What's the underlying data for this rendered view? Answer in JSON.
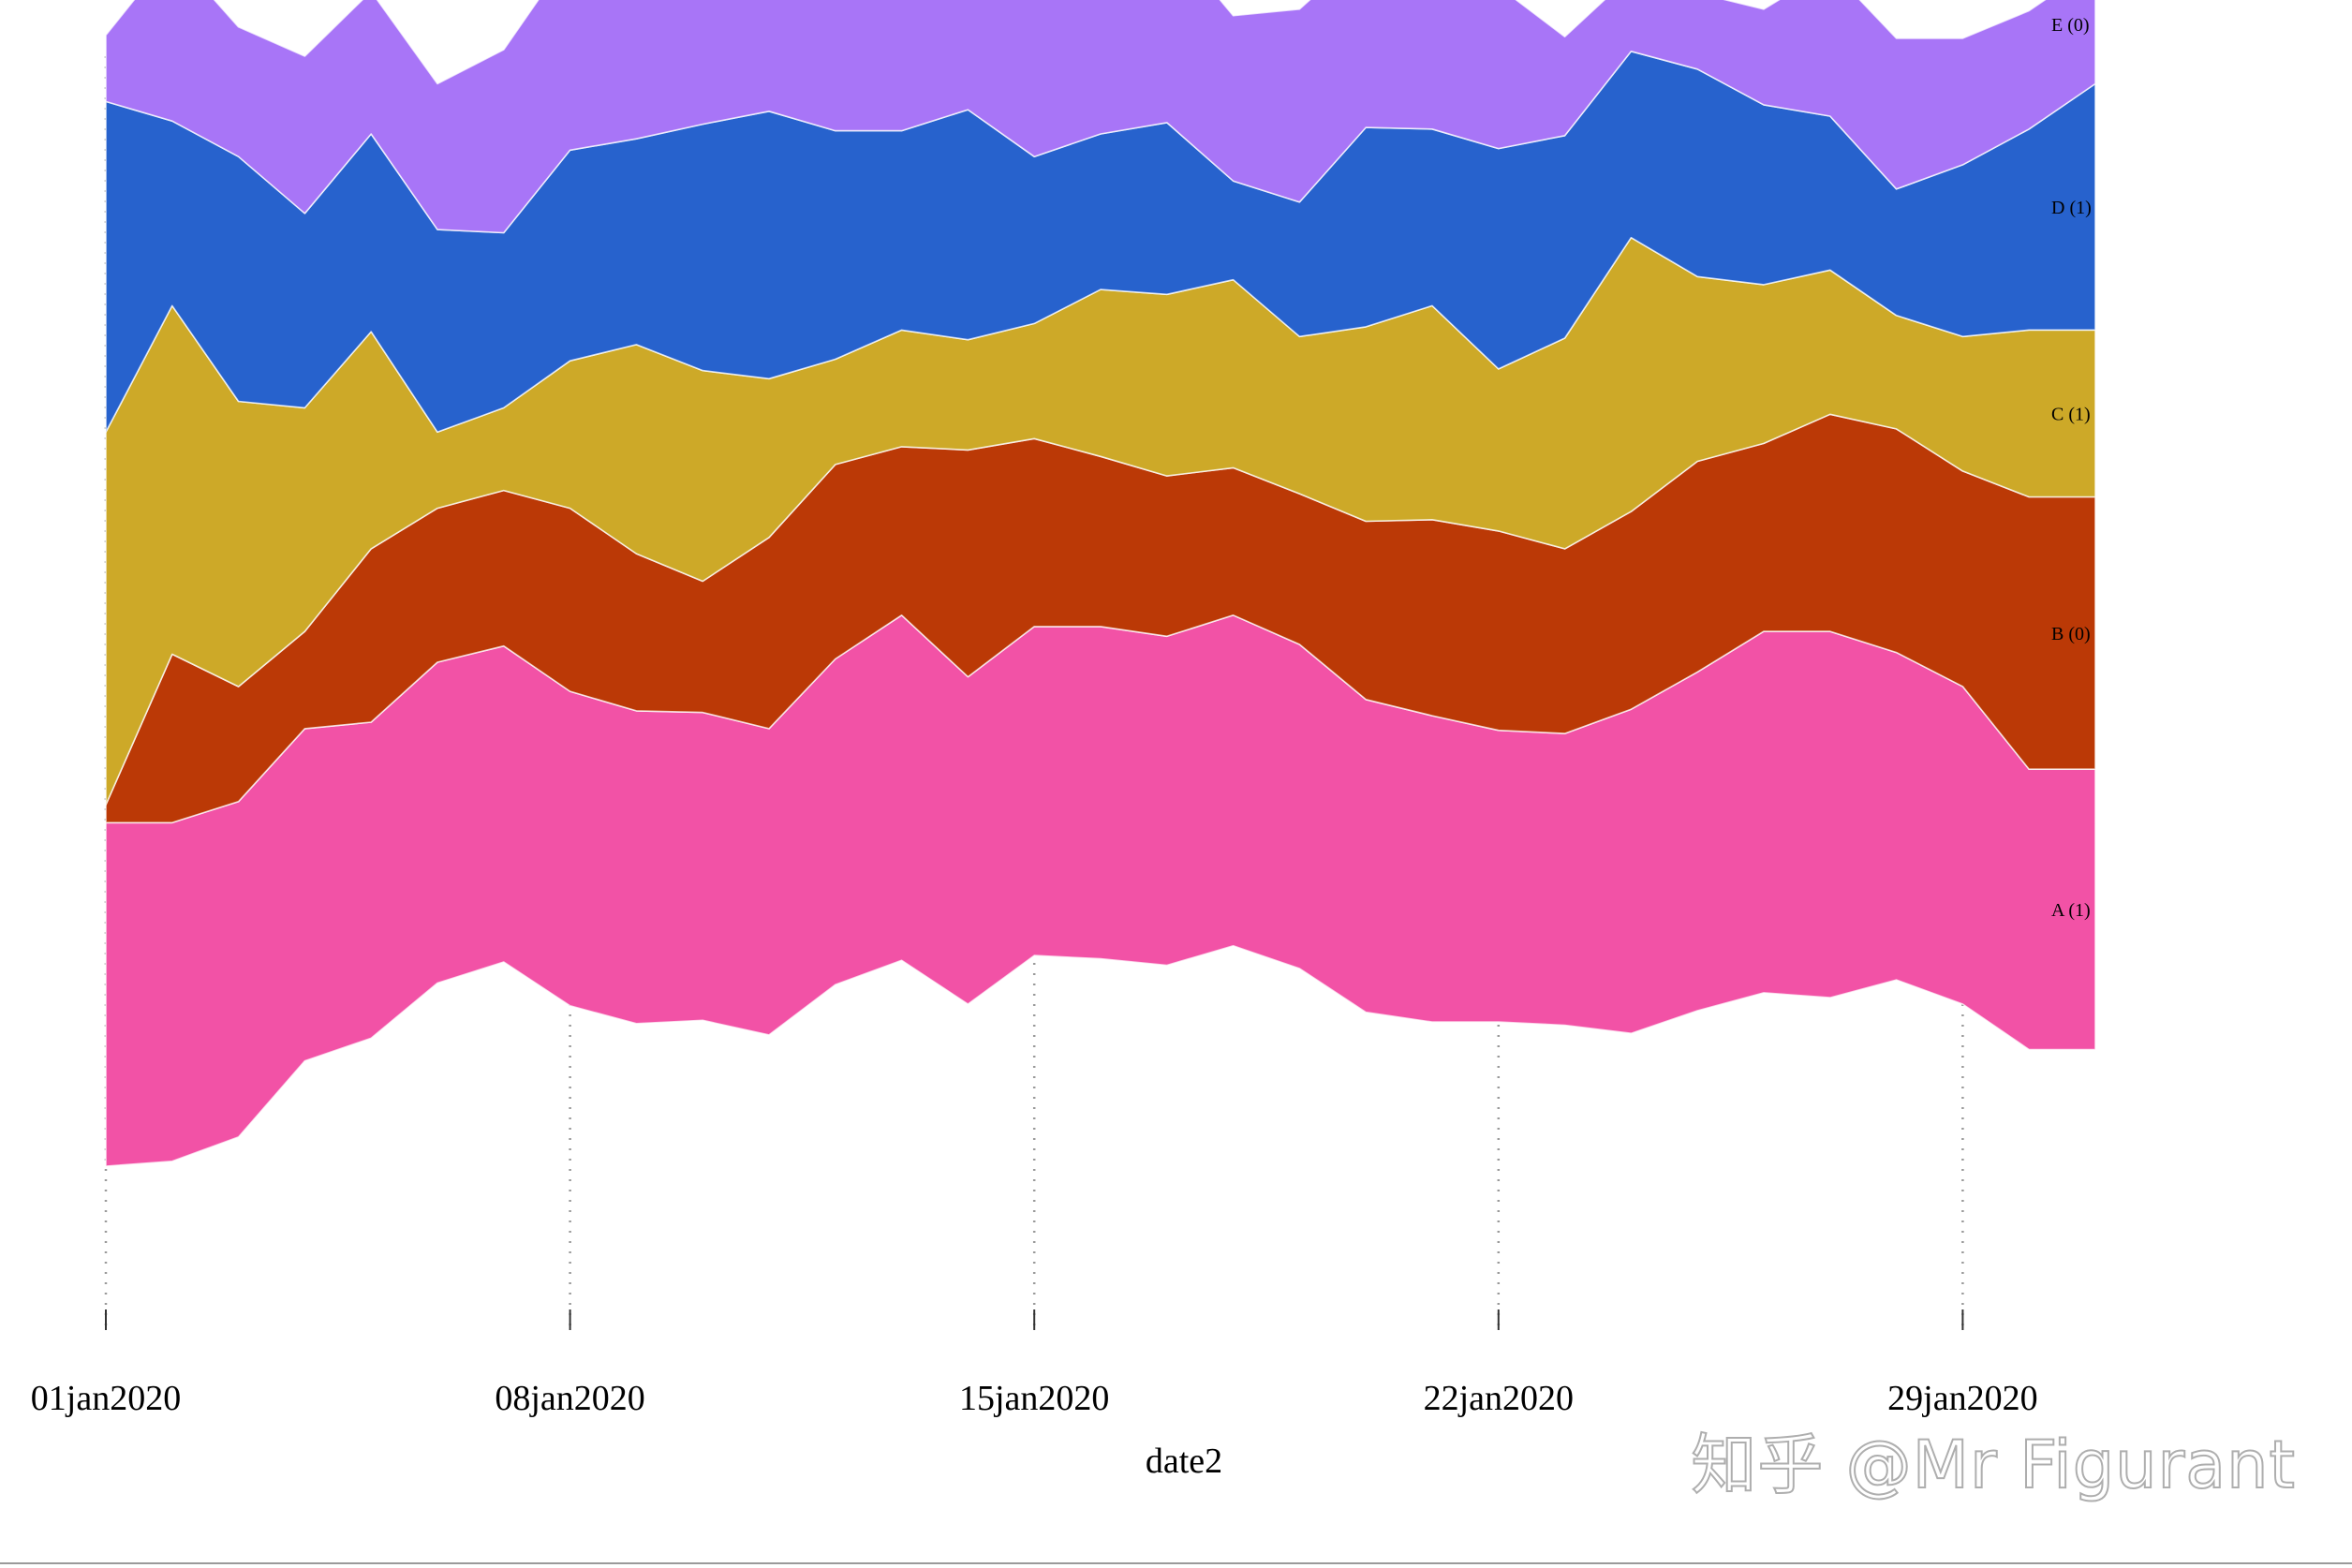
{
  "chart_data": {
    "type": "area",
    "stacked": true,
    "layout": "streamgraph",
    "title": "",
    "xlabel": "date2",
    "ylabel": "",
    "grid": "vertical-dotted",
    "legend": "right-inline",
    "x_days": [
      1,
      2,
      3,
      4,
      5,
      6,
      7,
      8,
      9,
      10,
      11,
      12,
      13,
      14,
      15,
      16,
      17,
      18,
      19,
      20,
      21,
      22,
      23,
      24,
      25,
      26,
      27,
      28,
      29,
      30,
      31
    ],
    "x_ticks": [
      {
        "day": 1,
        "label": "01jan2020"
      },
      {
        "day": 8,
        "label": "08jan2020"
      },
      {
        "day": 15,
        "label": "15jan2020"
      },
      {
        "day": 22,
        "label": "22jan2020"
      },
      {
        "day": 29,
        "label": "29jan2020"
      }
    ],
    "baseline": [
      -10.55,
      -10.4,
      -9.65,
      -7.3,
      -6.6,
      -4.9,
      -4.25,
      -5.6,
      -6.15,
      -6.05,
      -6.5,
      -4.95,
      -4.2,
      -5.55,
      -4.05,
      -4.15,
      -4.35,
      -3.75,
      -4.45,
      -5.8,
      -6.1,
      -6.1,
      -6.2,
      -6.45,
      -5.75,
      -5.2,
      -5.35,
      -4.8,
      -5.55,
      -6.95,
      -6.95
    ],
    "series": [
      {
        "name": "A",
        "legend": "A (1)",
        "color": "#f252a6",
        "values": [
          10.6,
          10.45,
          10.35,
          10.25,
          9.75,
          9.9,
          9.75,
          9.7,
          9.65,
          9.5,
          9.45,
          10.05,
          10.65,
          10.1,
          10.15,
          10.25,
          10.15,
          10.2,
          10.0,
          9.65,
          9.45,
          9.0,
          9.0,
          10.0,
          10.45,
          11.15,
          11.3,
          10.1,
          9.8,
          8.65,
          8.65
        ]
      },
      {
        "name": "B",
        "legend": "B (0)",
        "color": "#bb3906",
        "values": [
          0.55,
          5.2,
          3.55,
          3.0,
          5.35,
          4.75,
          4.8,
          5.65,
          4.85,
          4.05,
          5.9,
          6.0,
          5.2,
          7.0,
          5.8,
          5.25,
          4.95,
          4.55,
          4.65,
          5.5,
          6.05,
          6.15,
          5.7,
          6.1,
          6.5,
          5.8,
          6.7,
          6.9,
          6.65,
          8.4,
          8.4
        ]
      },
      {
        "name": "C",
        "legend": "C (1)",
        "color": "#cda928",
        "values": [
          11.5,
          10.75,
          8.8,
          6.9,
          6.7,
          2.35,
          2.55,
          4.55,
          6.45,
          6.5,
          4.9,
          3.25,
          3.6,
          3.4,
          3.55,
          5.15,
          5.6,
          5.8,
          4.85,
          6.0,
          6.6,
          5.0,
          6.5,
          8.45,
          5.7,
          4.9,
          4.45,
          3.5,
          4.15,
          5.15,
          5.15
        ]
      },
      {
        "name": "D",
        "legend": "D (1)",
        "color": "#2762cd",
        "values": [
          10.2,
          5.7,
          7.55,
          6.0,
          6.1,
          6.25,
          5.4,
          6.5,
          6.35,
          7.6,
          8.25,
          7.05,
          6.15,
          7.1,
          5.15,
          4.8,
          5.3,
          3.05,
          4.15,
          6.15,
          5.45,
          6.8,
          6.25,
          5.75,
          6.4,
          5.55,
          4.75,
          3.9,
          5.3,
          6.2,
          7.6
        ]
      },
      {
        "name": "E",
        "legend": "E (0)",
        "color": "#a875f7",
        "values": [
          2.05,
          5.2,
          4.0,
          4.85,
          4.4,
          4.5,
          5.65,
          6.05,
          6.9,
          6.65,
          6.15,
          7.55,
          7.05,
          5.5,
          6.95,
          7.0,
          5.75,
          5.1,
          5.95,
          5.5,
          5.6,
          5.0,
          3.05,
          2.35,
          2.35,
          2.95,
          4.55,
          4.65,
          3.9,
          3.65,
          3.65
        ]
      }
    ]
  },
  "watermark": "知乎 @Mr Figurant"
}
